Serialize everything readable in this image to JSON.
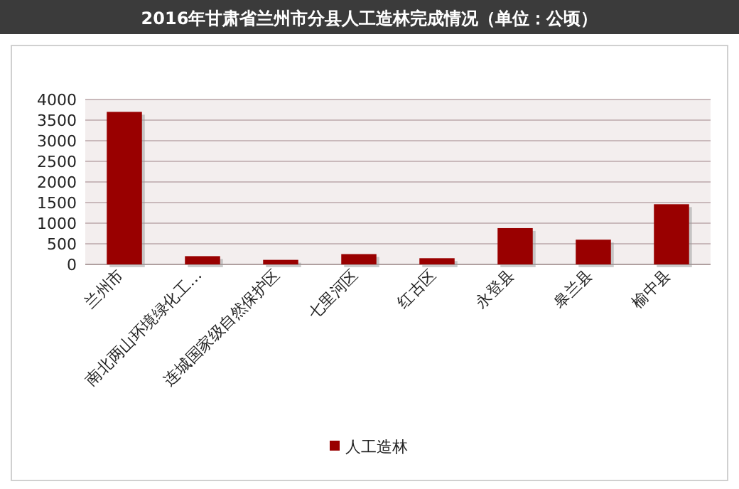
{
  "chart_data": {
    "type": "bar",
    "title": "2016年甘肃省兰州市分县人工造林完成情况（单位：公顷）",
    "categories": [
      "兰州市",
      "南北两山环境绿化工…",
      "连城国家级自然保护区",
      "七里河区",
      "红古区",
      "永登县",
      "皋兰县",
      "榆中县"
    ],
    "series": [
      {
        "name": "人工造林",
        "color": "#990000",
        "values": [
          3700,
          200,
          110,
          250,
          150,
          880,
          600,
          1460
        ]
      }
    ],
    "ylim": [
      0,
      4000
    ],
    "yticks": [
      0,
      500,
      1000,
      1500,
      2000,
      2500,
      3000,
      3500,
      4000
    ],
    "grid": "y",
    "legend": "bottom"
  }
}
